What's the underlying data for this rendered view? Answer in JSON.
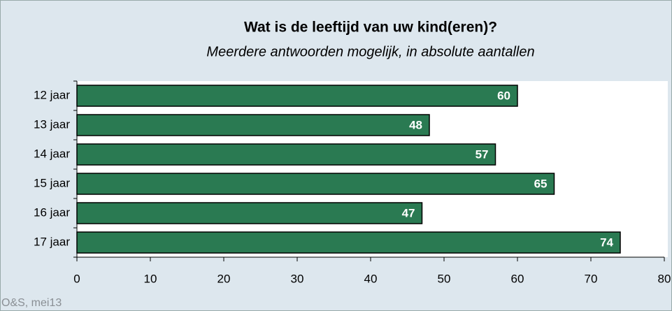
{
  "chart_data": {
    "type": "bar",
    "orientation": "horizontal",
    "title": "Wat is de leeftijd van uw kind(eren)?",
    "subtitle": "Meerdere antwoorden mogelijk, in absolute aantallen",
    "categories": [
      "12 jaar",
      "13 jaar",
      "14 jaar",
      "15 jaar",
      "16 jaar",
      "17 jaar"
    ],
    "values": [
      60,
      48,
      57,
      65,
      47,
      74
    ],
    "color": "#2a7a52",
    "xlim": [
      0,
      80
    ],
    "xticks": [
      0,
      10,
      20,
      30,
      40,
      50,
      60,
      70,
      80
    ],
    "source": "O&S, mei13"
  }
}
